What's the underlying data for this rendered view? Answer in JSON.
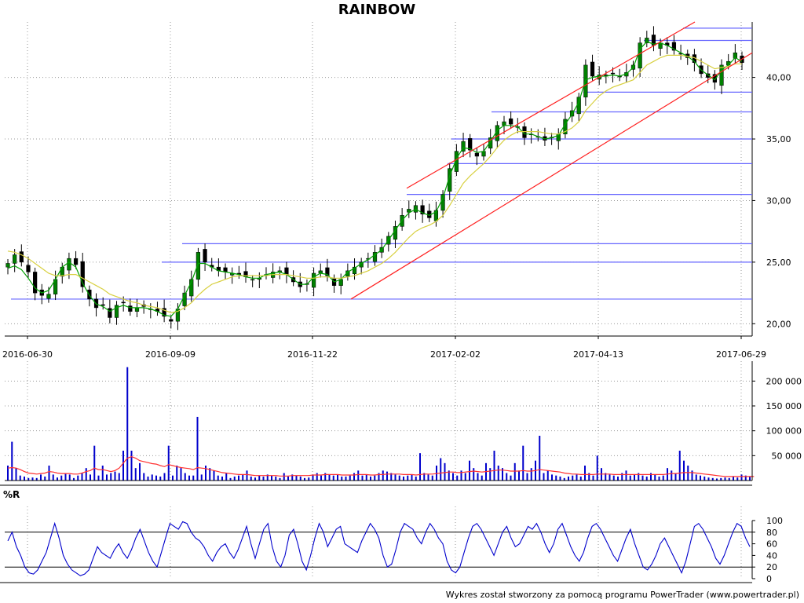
{
  "title": "RAINBOW",
  "footer": "Wykres został stworzony za pomocą programu PowerTrader (www.powertrader.pl)",
  "colors": {
    "bull_candle": "#008000",
    "bear_candle": "#000000",
    "sma_short": "#00a000",
    "sma_long": "#d8d040",
    "horizontal_lines": "#6666ff",
    "channel_lines": "#ff2020",
    "volume_bars": "#0000cc",
    "volume_avg": "#ff3030",
    "oscillator": "#0000cc"
  },
  "chart_data": [
    {
      "type": "candlestick",
      "title": "RAINBOW",
      "x_tick_labels": [
        "2016-06-30",
        "2016-09-09",
        "2016-11-22",
        "2017-02-02",
        "2017-04-13",
        "2017-06-29"
      ],
      "y_tick_labels": [
        "20,00",
        "25,00",
        "30,00",
        "35,00",
        "40,00"
      ],
      "y_ticks": [
        20,
        25,
        30,
        35,
        40
      ],
      "ylim": [
        19.0,
        44.5
      ],
      "grid": true,
      "close_series": [
        24.9,
        25.6,
        25.0,
        24.2,
        22.5,
        22.3,
        22.4,
        23.6,
        24.6,
        25.3,
        24.8,
        23.0,
        22.0,
        21.3,
        21.5,
        20.5,
        21.5,
        21.7,
        21.0,
        21.3,
        21.4,
        21.2,
        21.0,
        20.6,
        20.2,
        21.2,
        22.5,
        23.6,
        25.8,
        25.0,
        24.6,
        24.3,
        24.2,
        24.1,
        24.0,
        23.8,
        23.6,
        23.7,
        24.0,
        24.2,
        24.3,
        24.0,
        23.4,
        23.0,
        23.2,
        24.1,
        24.3,
        23.9,
        23.1,
        23.6,
        24.3,
        24.6,
        25.0,
        25.3,
        25.8,
        26.2,
        27.1,
        27.9,
        28.8,
        29.3,
        29.6,
        28.9,
        28.6,
        29.2,
        30.5,
        32.6,
        34.0,
        34.8,
        34.1,
        33.6,
        34.0,
        35.1,
        36.1,
        36.4,
        36.2,
        36.0,
        35.1,
        35.4,
        35.2,
        34.9,
        35.1,
        35.4,
        36.6,
        37.3,
        38.4,
        41.0,
        40.1,
        40.2,
        40.1,
        40.3,
        40.1,
        40.4,
        41.0,
        42.8,
        43.2,
        42.6,
        42.8,
        42.6,
        42.2,
        41.9,
        41.6,
        41.2,
        40.3,
        40.0,
        39.6,
        41.0,
        41.3,
        42.0,
        41.2
      ],
      "moving_averages": [
        {
          "values": [
            24.5,
            24.7,
            24.4,
            23.7,
            22.9,
            22.5,
            22.7,
            23.6,
            24.6,
            25.0,
            24.6,
            23.3,
            22.3,
            21.6,
            21.4,
            21.0,
            21.3,
            21.5,
            21.3,
            21.3,
            21.3,
            21.2,
            21.0,
            20.7,
            20.6,
            21.2,
            22.3,
            23.4,
            24.9,
            24.9,
            24.6,
            24.3,
            24.2,
            24.1,
            24.0,
            23.8,
            23.7,
            23.7,
            24.0,
            24.1,
            24.2,
            24.0,
            23.6,
            23.2,
            23.2,
            23.8,
            24.1,
            24.0,
            23.4,
            23.6,
            24.2,
            24.5,
            24.9,
            25.2,
            25.6,
            26.0,
            26.8,
            27.6,
            28.4,
            29.0,
            29.3,
            29.0,
            28.8,
            29.1,
            30.2,
            32.0,
            33.4,
            34.3,
            34.2,
            33.9,
            34.0,
            34.8,
            35.7,
            36.1,
            36.1,
            36.0,
            35.4,
            35.4,
            35.2,
            35.0,
            35.1,
            35.3,
            36.2,
            37.0,
            38.0,
            39.8,
            40.0,
            40.1,
            40.1,
            40.2,
            40.1,
            40.3,
            40.8,
            42.3,
            42.9,
            42.7,
            42.8,
            42.6,
            42.3,
            42.0,
            41.7,
            41.3,
            40.6,
            40.2,
            39.8,
            40.6,
            41.0,
            41.6,
            41.3
          ]
        },
        {
          "values": [
            25.9,
            25.8,
            25.6,
            25.3,
            24.9,
            24.5,
            24.1,
            23.9,
            23.9,
            24.0,
            24.0,
            23.7,
            23.4,
            23.1,
            22.8,
            22.4,
            22.2,
            22.0,
            21.8,
            21.7,
            21.5,
            21.4,
            21.3,
            21.1,
            20.9,
            21.0,
            21.3,
            21.7,
            22.3,
            22.8,
            23.2,
            23.4,
            23.6,
            23.8,
            23.9,
            23.9,
            23.9,
            23.9,
            23.9,
            24.0,
            24.0,
            24.0,
            23.9,
            23.8,
            23.7,
            23.7,
            23.8,
            23.8,
            23.7,
            23.7,
            23.8,
            23.9,
            24.1,
            24.3,
            24.6,
            24.9,
            25.3,
            25.8,
            26.4,
            27.0,
            27.5,
            27.8,
            28.0,
            28.3,
            28.8,
            29.6,
            30.5,
            31.4,
            32.0,
            32.5,
            33.0,
            33.6,
            34.3,
            34.9,
            35.3,
            35.6,
            35.6,
            35.6,
            35.6,
            35.5,
            35.4,
            35.4,
            35.6,
            35.9,
            36.4,
            37.3,
            37.9,
            38.5,
            38.9,
            39.2,
            39.4,
            39.6,
            39.8,
            40.4,
            41.0,
            41.3,
            41.6,
            41.8,
            41.8,
            41.8,
            41.7,
            41.6,
            41.3,
            41.0,
            40.7,
            40.8,
            40.9,
            41.1,
            41.1
          ]
        }
      ],
      "support_resistance_levels": [
        22.0,
        25.0,
        26.5,
        30.5,
        33.0,
        35.0,
        37.2,
        38.8,
        43.0,
        44.0
      ],
      "channel": {
        "upper": [
          [
            31.0,
            44.5
          ]
        ],
        "lower": [
          [
            22.0,
            42.0
          ]
        ]
      }
    },
    {
      "type": "bar",
      "title": "",
      "y_tick_labels": [
        "50 000",
        "100 000",
        "150 000",
        "200 000"
      ],
      "y_ticks": [
        50000,
        100000,
        150000,
        200000
      ],
      "ylim": [
        0,
        240000
      ],
      "values": [
        30000,
        78000,
        25000,
        10000,
        8000,
        5000,
        6000,
        5000,
        12000,
        8000,
        30000,
        12000,
        6000,
        10000,
        15000,
        12000,
        5000,
        10000,
        15000,
        25000,
        12000,
        70000,
        10000,
        30000,
        12000,
        15000,
        18000,
        15000,
        60000,
        228000,
        60000,
        25000,
        35000,
        15000,
        8000,
        12000,
        10000,
        8000,
        15000,
        70000,
        10000,
        30000,
        25000,
        15000,
        10000,
        10000,
        128000,
        12000,
        30000,
        25000,
        20000,
        10000,
        8000,
        15000,
        5000,
        8000,
        10000,
        12000,
        20000,
        8000,
        6000,
        10000,
        8000,
        12000,
        10000,
        8000,
        5000,
        15000,
        8000,
        12000,
        10000,
        8000,
        5000,
        6000,
        12000,
        15000,
        10000,
        15000,
        12000,
        10000,
        12000,
        8000,
        8000,
        10000,
        15000,
        20000,
        10000,
        12000,
        8000,
        10000,
        15000,
        20000,
        18000,
        15000,
        12000,
        10000,
        8000,
        10000,
        12000,
        8000,
        55000,
        15000,
        12000,
        10000,
        30000,
        45000,
        35000,
        20000,
        15000,
        10000,
        20000,
        15000,
        40000,
        25000,
        15000,
        10000,
        35000,
        25000,
        60000,
        30000,
        25000,
        15000,
        10000,
        35000,
        20000,
        70000,
        15000,
        25000,
        40000,
        90000,
        15000,
        20000,
        12000,
        10000,
        8000,
        5000,
        8000,
        10000,
        12000,
        8000,
        30000,
        15000,
        10000,
        50000,
        25000,
        15000,
        12000,
        10000,
        8000,
        15000,
        20000,
        10000,
        12000,
        15000,
        10000,
        8000,
        15000,
        12000,
        8000,
        10000,
        25000,
        20000,
        15000,
        60000,
        40000,
        30000,
        20000,
        12000,
        10000,
        8000,
        6000,
        5000,
        4000,
        5000,
        6000,
        5000,
        8000,
        6000,
        12000,
        10000,
        8000
      ],
      "average_line": [
        25000,
        26000,
        25000,
        22000,
        18000,
        15000,
        14000,
        13000,
        14000,
        15000,
        18000,
        17000,
        15000,
        14000,
        14000,
        14000,
        13000,
        13000,
        15000,
        18000,
        20000,
        25000,
        22000,
        22000,
        20000,
        18000,
        20000,
        25000,
        35000,
        45000,
        48000,
        45000,
        40000,
        38000,
        36000,
        34000,
        33000,
        30000,
        28000,
        32000,
        30000,
        28000,
        26000,
        25000,
        24000,
        22000,
        26000,
        25000,
        24000,
        22000,
        20000,
        18000,
        16000,
        15000,
        14000,
        13000,
        12000,
        12000,
        12000,
        11000,
        10000,
        10000,
        10000,
        10000,
        10000,
        10000,
        9000,
        9000,
        9000,
        10000,
        10000,
        10000,
        10000,
        10000,
        11000,
        11000,
        11000,
        12000,
        12000,
        12000,
        12000,
        11000,
        11000,
        11000,
        11000,
        12000,
        12000,
        12000,
        11000,
        11000,
        12000,
        12000,
        13000,
        13000,
        13000,
        13000,
        12000,
        12000,
        12000,
        11000,
        12000,
        13000,
        13000,
        13000,
        14000,
        15000,
        16000,
        17000,
        17000,
        16000,
        16000,
        17000,
        18000,
        19000,
        18000,
        17000,
        18000,
        19000,
        20000,
        21000,
        21000,
        20000,
        19000,
        19000,
        19000,
        20000,
        19000,
        19000,
        20000,
        22000,
        21000,
        20000,
        19000,
        18000,
        17000,
        15000,
        14000,
        13000,
        13000,
        12000,
        12000,
        12000,
        12000,
        13000,
        13000,
        13000,
        13000,
        12000,
        12000,
        12000,
        12000,
        12000,
        12000,
        12000,
        12000,
        12000,
        12000,
        12000,
        12000,
        12000,
        13000,
        14000,
        14000,
        15000,
        16000,
        16000,
        16000,
        15000,
        14000,
        13000,
        12000,
        11000,
        10000,
        9000,
        8000,
        8000,
        8000,
        8000,
        8000,
        8000,
        8000,
        8000
      ]
    },
    {
      "type": "line",
      "title": "%R",
      "y_tick_labels": [
        "0",
        "20",
        "40",
        "60",
        "80",
        "100"
      ],
      "y_ticks": [
        0,
        20,
        40,
        60,
        80,
        100
      ],
      "ylim": [
        0,
        100
      ],
      "reference_lines": [
        20,
        80
      ],
      "values": [
        65,
        80,
        55,
        40,
        20,
        10,
        8,
        15,
        30,
        45,
        70,
        95,
        70,
        40,
        25,
        15,
        10,
        5,
        8,
        15,
        35,
        55,
        45,
        40,
        35,
        50,
        60,
        45,
        35,
        50,
        70,
        85,
        65,
        45,
        30,
        20,
        45,
        70,
        95,
        90,
        85,
        98,
        95,
        80,
        70,
        65,
        55,
        40,
        30,
        45,
        55,
        60,
        45,
        35,
        50,
        70,
        90,
        60,
        35,
        60,
        85,
        95,
        55,
        30,
        20,
        40,
        75,
        85,
        60,
        30,
        15,
        40,
        70,
        95,
        80,
        55,
        70,
        85,
        90,
        60,
        55,
        50,
        45,
        65,
        80,
        95,
        85,
        70,
        40,
        20,
        25,
        50,
        80,
        95,
        90,
        85,
        70,
        60,
        80,
        95,
        85,
        70,
        60,
        30,
        15,
        10,
        20,
        45,
        70,
        90,
        95,
        85,
        70,
        55,
        40,
        60,
        80,
        90,
        70,
        55,
        60,
        75,
        90,
        85,
        95,
        80,
        60,
        45,
        60,
        85,
        95,
        75,
        55,
        40,
        30,
        45,
        70,
        90,
        95,
        85,
        70,
        55,
        40,
        30,
        50,
        70,
        85,
        60,
        40,
        20,
        15,
        25,
        40,
        60,
        70,
        55,
        40,
        25,
        10,
        30,
        60,
        90,
        95,
        85,
        70,
        55,
        35,
        25,
        40,
        60,
        80,
        95,
        90,
        70,
        55
      ]
    }
  ]
}
